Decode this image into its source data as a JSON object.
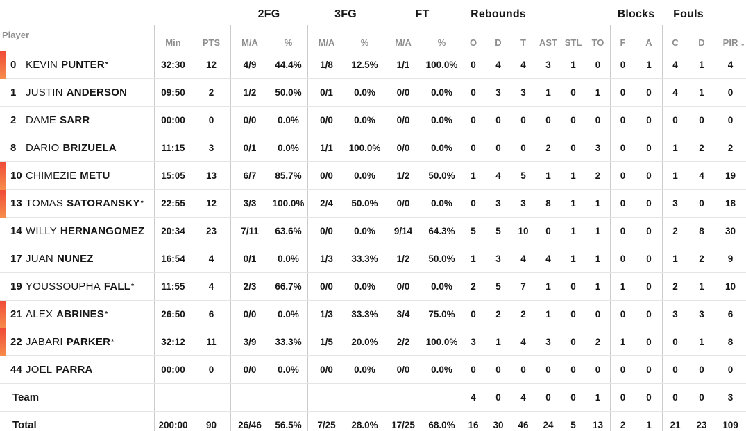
{
  "colors": {
    "accent_bar_top": "#EF4A38",
    "accent_bar_bottom": "#F78D4B",
    "text": "#161616",
    "muted_header": "#8E8E8E",
    "column_divider": "#CBCBCB",
    "row_separator": "#E4E4E4",
    "background": "#FFFFFF"
  },
  "table": {
    "player_col_header": "Player",
    "groups": [
      "2FG",
      "3FG",
      "FT",
      "Rebounds",
      "Blocks",
      "Fouls"
    ],
    "subheaders": [
      "Min",
      "PTS",
      "M/A",
      "%",
      "M/A",
      "%",
      "M/A",
      "%",
      "O",
      "D",
      "T",
      "AST",
      "STL",
      "TO",
      "F",
      "A",
      "C",
      "D",
      "PIR"
    ],
    "partial_next_col": "-",
    "rows": [
      {
        "num": "0",
        "first": "KEVIN",
        "last": "PUNTER",
        "starter": "*",
        "on_court": true,
        "cells": [
          "32:30",
          "12",
          "4/9",
          "44.4%",
          "1/8",
          "12.5%",
          "1/1",
          "100.0%",
          "0",
          "4",
          "4",
          "3",
          "1",
          "0",
          "0",
          "1",
          "4",
          "1",
          "4"
        ]
      },
      {
        "num": "1",
        "first": "JUSTIN",
        "last": "ANDERSON",
        "starter": "",
        "on_court": false,
        "cells": [
          "09:50",
          "2",
          "1/2",
          "50.0%",
          "0/1",
          "0.0%",
          "0/0",
          "0.0%",
          "0",
          "3",
          "3",
          "1",
          "0",
          "1",
          "0",
          "0",
          "4",
          "1",
          "0"
        ]
      },
      {
        "num": "2",
        "first": "DAME",
        "last": "SARR",
        "starter": "",
        "on_court": false,
        "cells": [
          "00:00",
          "0",
          "0/0",
          "0.0%",
          "0/0",
          "0.0%",
          "0/0",
          "0.0%",
          "0",
          "0",
          "0",
          "0",
          "0",
          "0",
          "0",
          "0",
          "0",
          "0",
          "0"
        ]
      },
      {
        "num": "8",
        "first": "DARIO",
        "last": "BRIZUELA",
        "starter": "",
        "on_court": false,
        "cells": [
          "11:15",
          "3",
          "0/1",
          "0.0%",
          "1/1",
          "100.0%",
          "0/0",
          "0.0%",
          "0",
          "0",
          "0",
          "2",
          "0",
          "3",
          "0",
          "0",
          "1",
          "2",
          "2"
        ]
      },
      {
        "num": "10",
        "first": "CHIMEZIE",
        "last": "METU",
        "starter": "",
        "on_court": true,
        "cells": [
          "15:05",
          "13",
          "6/7",
          "85.7%",
          "0/0",
          "0.0%",
          "1/2",
          "50.0%",
          "1",
          "4",
          "5",
          "1",
          "1",
          "2",
          "0",
          "0",
          "1",
          "4",
          "19"
        ]
      },
      {
        "num": "13",
        "first": "TOMAS",
        "last": "SATORANSKY",
        "starter": "*",
        "on_court": true,
        "cells": [
          "22:55",
          "12",
          "3/3",
          "100.0%",
          "2/4",
          "50.0%",
          "0/0",
          "0.0%",
          "0",
          "3",
          "3",
          "8",
          "1",
          "1",
          "0",
          "0",
          "3",
          "0",
          "18"
        ]
      },
      {
        "num": "14",
        "first": "WILLY",
        "last": "HERNANGOMEZ",
        "starter": "",
        "on_court": false,
        "cells": [
          "20:34",
          "23",
          "7/11",
          "63.6%",
          "0/0",
          "0.0%",
          "9/14",
          "64.3%",
          "5",
          "5",
          "10",
          "0",
          "1",
          "1",
          "0",
          "0",
          "2",
          "8",
          "30"
        ]
      },
      {
        "num": "17",
        "first": "JUAN",
        "last": "NUNEZ",
        "starter": "",
        "on_court": false,
        "cells": [
          "16:54",
          "4",
          "0/1",
          "0.0%",
          "1/3",
          "33.3%",
          "1/2",
          "50.0%",
          "1",
          "3",
          "4",
          "4",
          "1",
          "1",
          "0",
          "0",
          "1",
          "2",
          "9"
        ]
      },
      {
        "num": "19",
        "first": "YOUSSOUPHA",
        "last": "FALL",
        "starter": "*",
        "on_court": false,
        "cells": [
          "11:55",
          "4",
          "2/3",
          "66.7%",
          "0/0",
          "0.0%",
          "0/0",
          "0.0%",
          "2",
          "5",
          "7",
          "1",
          "0",
          "1",
          "1",
          "0",
          "2",
          "1",
          "10"
        ]
      },
      {
        "num": "21",
        "first": "ALEX",
        "last": "ABRINES",
        "starter": "*",
        "on_court": true,
        "cells": [
          "26:50",
          "6",
          "0/0",
          "0.0%",
          "1/3",
          "33.3%",
          "3/4",
          "75.0%",
          "0",
          "2",
          "2",
          "1",
          "0",
          "0",
          "0",
          "0",
          "3",
          "3",
          "6"
        ]
      },
      {
        "num": "22",
        "first": "JABARI",
        "last": "PARKER",
        "starter": "*",
        "on_court": true,
        "cells": [
          "32:12",
          "11",
          "3/9",
          "33.3%",
          "1/5",
          "20.0%",
          "2/2",
          "100.0%",
          "3",
          "1",
          "4",
          "3",
          "0",
          "2",
          "1",
          "0",
          "0",
          "1",
          "8"
        ]
      },
      {
        "num": "44",
        "first": "JOEL",
        "last": "PARRA",
        "starter": "",
        "on_court": false,
        "cells": [
          "00:00",
          "0",
          "0/0",
          "0.0%",
          "0/0",
          "0.0%",
          "0/0",
          "0.0%",
          "0",
          "0",
          "0",
          "0",
          "0",
          "0",
          "0",
          "0",
          "0",
          "0",
          "0"
        ]
      },
      {
        "label": "Team",
        "on_court": false,
        "cells": [
          "",
          "",
          "",
          "",
          "",
          "",
          "",
          "",
          "4",
          "0",
          "4",
          "0",
          "0",
          "1",
          "0",
          "0",
          "0",
          "0",
          "3"
        ]
      },
      {
        "label": "Total",
        "on_court": false,
        "cells": [
          "200:00",
          "90",
          "26/46",
          "56.5%",
          "7/25",
          "28.0%",
          "17/25",
          "68.0%",
          "16",
          "30",
          "46",
          "24",
          "5",
          "13",
          "2",
          "1",
          "21",
          "23",
          "109"
        ]
      }
    ]
  }
}
